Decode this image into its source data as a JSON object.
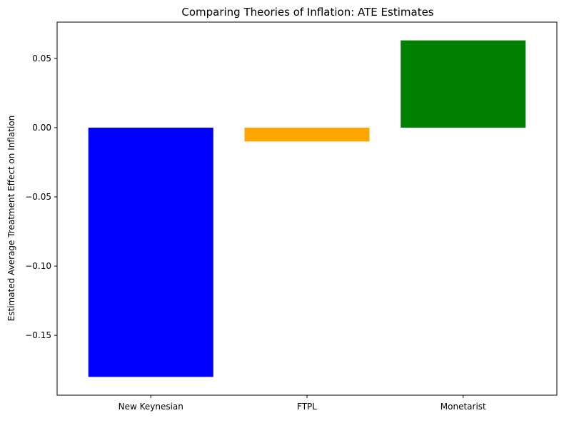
{
  "chart_data": {
    "type": "bar",
    "title": "Comparing Theories of Inflation: ATE Estimates",
    "xlabel": "",
    "ylabel": "Estimated Average Treatment Effect on Inflation",
    "categories": [
      "New Keynesian",
      "FTPL",
      "Monetarist"
    ],
    "values": [
      -0.18,
      -0.01,
      0.063
    ],
    "colors": [
      "#0000ff",
      "#ffa500",
      "#008000"
    ],
    "ylim": [
      -0.1932,
      0.0762
    ],
    "yticks": [
      -0.15,
      -0.1,
      -0.05,
      0.0,
      0.05
    ],
    "ytick_labels": [
      "−0.15",
      "−0.10",
      "−0.05",
      "0.00",
      "0.05"
    ],
    "grid": false,
    "legend": "none"
  }
}
